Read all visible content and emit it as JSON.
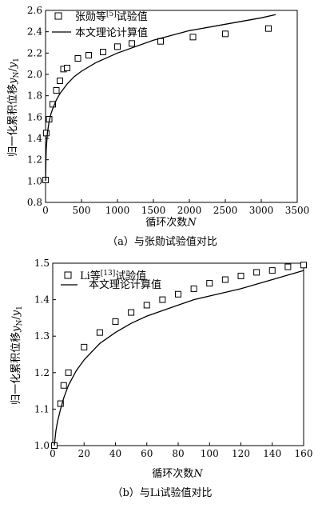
{
  "chart_data": [
    {
      "type": "scatter",
      "caption": "（a）与张勋试验值对比",
      "xlabel_prefix": "循环次数",
      "xlabel_var": "N",
      "ylabel_prefix": "归一化累积位移",
      "ylabel_num": "y",
      "ylabel_num_sub": "N",
      "ylabel_sep": "/",
      "ylabel_den": "y",
      "ylabel_den_sub": "1",
      "xlim": [
        0,
        3500
      ],
      "ylim": [
        0.8,
        2.6
      ],
      "xticks": [
        0,
        500,
        1000,
        1500,
        2000,
        2500,
        3000,
        3500
      ],
      "yticks": [
        "0.8",
        "1.0",
        "1.2",
        "1.4",
        "1.6",
        "1.8",
        "2.0",
        "2.2",
        "2.4",
        "2.6"
      ],
      "legend_position": "top-left",
      "series": [
        {
          "name": "张勋等[5]试验值",
          "legend_main": "张勋等",
          "legend_sup": "[5]",
          "legend_tail": "试验值",
          "kind": "markers",
          "marker": "open-square",
          "x": [
            1,
            10,
            50,
            100,
            150,
            200,
            250,
            300,
            450,
            600,
            800,
            1000,
            1200,
            1600,
            2050,
            2500,
            3100
          ],
          "y": [
            1.01,
            1.45,
            1.58,
            1.72,
            1.85,
            1.94,
            2.05,
            2.06,
            2.15,
            2.18,
            2.21,
            2.26,
            2.29,
            2.31,
            2.35,
            2.38,
            2.43
          ]
        },
        {
          "name": "本文理论计算值",
          "kind": "line",
          "x": [
            1,
            5,
            10,
            25,
            50,
            75,
            100,
            150,
            200,
            300,
            400,
            500,
            700,
            1000,
            1500,
            2000,
            2500,
            3000,
            3200
          ],
          "y": [
            1.0,
            1.2,
            1.3,
            1.45,
            1.56,
            1.63,
            1.68,
            1.76,
            1.82,
            1.91,
            1.98,
            2.03,
            2.11,
            2.2,
            2.32,
            2.41,
            2.47,
            2.53,
            2.56
          ]
        }
      ]
    },
    {
      "type": "scatter",
      "caption": "（b）与Li试验值对比",
      "xlabel_prefix": "循环次数",
      "xlabel_var": "N",
      "ylabel_prefix": "归一化累积位移",
      "ylabel_num": "y",
      "ylabel_num_sub": "N",
      "ylabel_sep": "/",
      "ylabel_den": "y",
      "ylabel_den_sub": "1",
      "xlim": [
        0,
        160
      ],
      "ylim": [
        1.0,
        1.5
      ],
      "xticks": [
        0,
        20,
        40,
        60,
        80,
        100,
        120,
        140,
        160
      ],
      "yticks": [
        "1.0",
        "1.1",
        "1.2",
        "1.3",
        "1.4",
        "1.5"
      ],
      "legend_position": "top-left",
      "series": [
        {
          "name": "Li等[13]试验值",
          "legend_main": "Li等",
          "legend_sup": "[13]",
          "legend_tail": "试验值",
          "kind": "markers",
          "marker": "open-square",
          "x": [
            1,
            5,
            7,
            10,
            20,
            30,
            40,
            50,
            60,
            70,
            80,
            90,
            100,
            110,
            120,
            130,
            140,
            150,
            160
          ],
          "y": [
            1.0,
            1.115,
            1.165,
            1.2,
            1.27,
            1.31,
            1.34,
            1.365,
            1.385,
            1.4,
            1.415,
            1.43,
            1.445,
            1.455,
            1.465,
            1.475,
            1.48,
            1.49,
            1.495
          ]
        },
        {
          "name": "本文理论计算值",
          "kind": "line",
          "x": [
            1,
            2,
            3,
            5,
            7,
            10,
            15,
            20,
            30,
            40,
            50,
            60,
            70,
            80,
            90,
            100,
            120,
            140,
            160
          ],
          "y": [
            1.0,
            1.04,
            1.065,
            1.1,
            1.13,
            1.165,
            1.205,
            1.235,
            1.28,
            1.31,
            1.335,
            1.355,
            1.37,
            1.385,
            1.4,
            1.41,
            1.43,
            1.455,
            1.48
          ]
        }
      ]
    }
  ]
}
